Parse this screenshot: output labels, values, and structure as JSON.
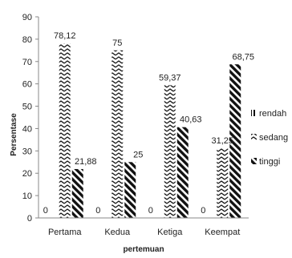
{
  "chart_data": {
    "type": "bar",
    "xlabel": "pertemuan",
    "ylabel": "Persentase",
    "ylim": [
      0,
      90
    ],
    "yticks": [
      0,
      10,
      20,
      30,
      40,
      50,
      60,
      70,
      80,
      90
    ],
    "grid": false,
    "legend_position": "right",
    "categories": [
      "Pertama",
      "Kedua",
      "Ketiga",
      "Keempat"
    ],
    "series": [
      {
        "name": "rendah",
        "pattern": "vertical-stripes",
        "values": [
          0,
          0,
          0,
          0
        ],
        "labels": [
          "0",
          "0",
          "0",
          "0"
        ]
      },
      {
        "name": "sedang",
        "pattern": "zigzag",
        "values": [
          78.12,
          75,
          59.37,
          31.25
        ],
        "labels": [
          "78,12",
          "75",
          "59,37",
          "31,25"
        ]
      },
      {
        "name": "tinggi",
        "pattern": "diagonal-stripes",
        "values": [
          21.88,
          25,
          40.63,
          68.75
        ],
        "labels": [
          "21,88",
          "25",
          "40,63",
          "68,75"
        ]
      }
    ],
    "colors": {
      "ink": "#111111",
      "axis": "#888888",
      "text": "#222222"
    }
  }
}
